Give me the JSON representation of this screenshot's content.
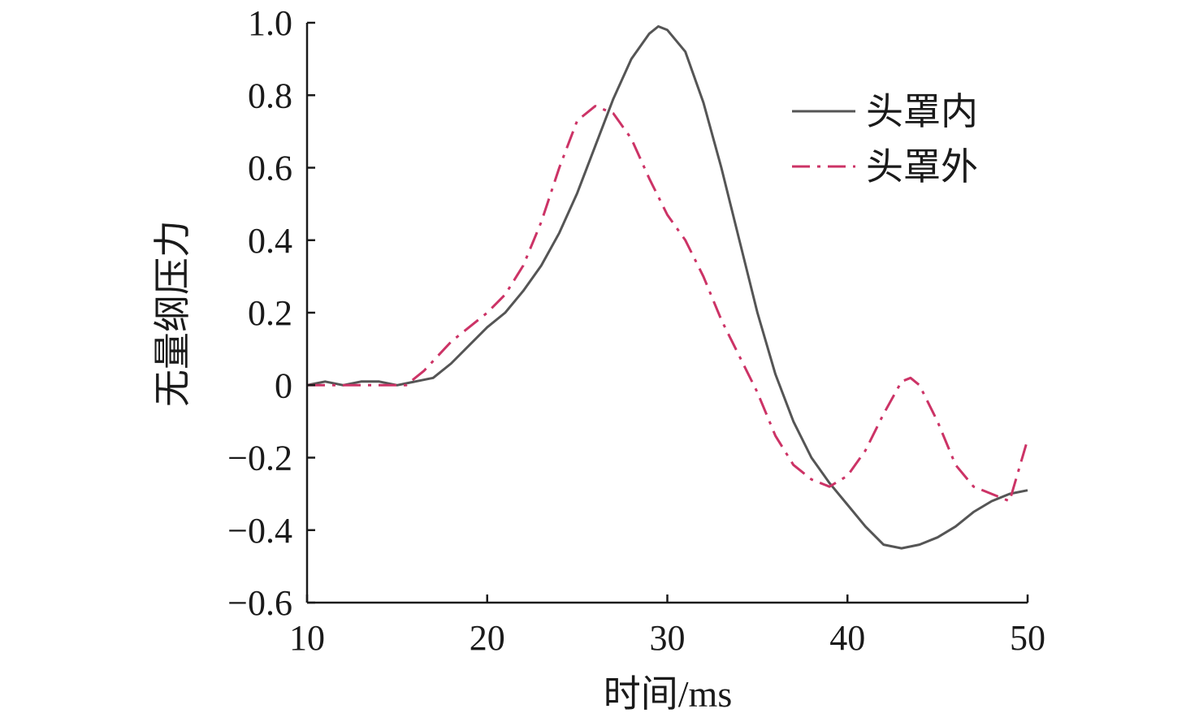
{
  "chart_data": {
    "type": "line",
    "title": "",
    "xlabel": "时间/ms",
    "ylabel": "无量纲压力",
    "xlim": [
      10,
      50
    ],
    "ylim": [
      -0.6,
      1.0
    ],
    "xticks": [
      10,
      20,
      30,
      40,
      50
    ],
    "xtick_labels": [
      "10",
      "20",
      "30",
      "40",
      "50"
    ],
    "yticks": [
      1.0,
      0.8,
      0.6,
      0.4,
      0.2,
      0,
      -0.2,
      -0.4,
      -0.6
    ],
    "ytick_labels": [
      "1.0",
      "0.8",
      "0.6",
      "0.4",
      "0.2",
      "0",
      "−0.2",
      "−0.4",
      "−0.6"
    ],
    "grid": false,
    "legend_position": "top-right",
    "series": [
      {
        "name": "头罩内",
        "color": "#555555",
        "line_style": "solid",
        "x": [
          10,
          11,
          12,
          13,
          14,
          15,
          16,
          17,
          18,
          19,
          20,
          21,
          22,
          23,
          24,
          25,
          26,
          27,
          28,
          29,
          29.5,
          30,
          31,
          32,
          33,
          34,
          35,
          36,
          37,
          38,
          39,
          40,
          41,
          42,
          43,
          44,
          45,
          46,
          47,
          48,
          49,
          50
        ],
        "y": [
          0.0,
          0.01,
          0.0,
          0.01,
          0.01,
          0.0,
          0.01,
          0.02,
          0.06,
          0.11,
          0.16,
          0.2,
          0.26,
          0.33,
          0.42,
          0.53,
          0.66,
          0.79,
          0.9,
          0.97,
          0.99,
          0.98,
          0.92,
          0.78,
          0.6,
          0.4,
          0.2,
          0.03,
          -0.1,
          -0.2,
          -0.27,
          -0.33,
          -0.39,
          -0.44,
          -0.45,
          -0.44,
          -0.42,
          -0.39,
          -0.35,
          -0.32,
          -0.3,
          -0.29
        ]
      },
      {
        "name": "头罩外",
        "color": "#cc3366",
        "line_style": "dash-dot",
        "x": [
          10,
          12,
          14,
          15.5,
          16.5,
          18,
          20,
          21,
          22,
          23,
          24,
          25,
          26,
          27,
          28,
          29,
          30,
          31,
          32,
          33,
          34,
          35,
          36,
          37,
          38,
          39,
          40,
          41,
          42,
          43,
          43.5,
          44,
          45,
          46,
          47,
          48,
          49,
          50
        ],
        "y": [
          0.0,
          0.0,
          0.0,
          0.0,
          0.04,
          0.12,
          0.2,
          0.25,
          0.33,
          0.45,
          0.6,
          0.73,
          0.77,
          0.75,
          0.68,
          0.57,
          0.47,
          0.4,
          0.3,
          0.18,
          0.08,
          -0.02,
          -0.14,
          -0.22,
          -0.26,
          -0.28,
          -0.25,
          -0.18,
          -0.08,
          0.01,
          0.02,
          0.0,
          -0.1,
          -0.22,
          -0.28,
          -0.3,
          -0.32,
          -0.15
        ]
      }
    ]
  }
}
